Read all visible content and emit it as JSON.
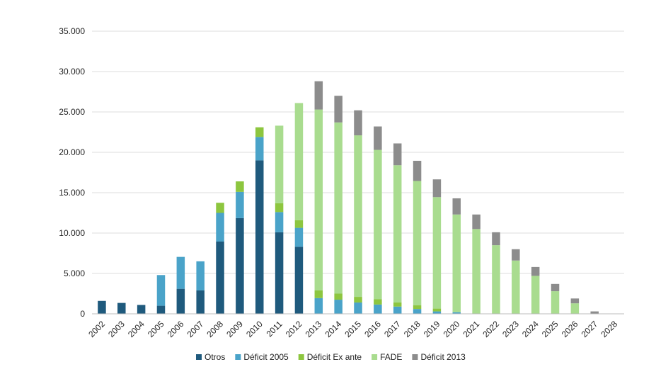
{
  "chart_data": {
    "type": "bar",
    "stacked": true,
    "title": "",
    "xlabel": "",
    "ylabel": "",
    "ylim": [
      0,
      35000
    ],
    "y_ticks": [
      "0",
      "5.000",
      "10.000",
      "15.000",
      "20.000",
      "25.000",
      "30.000",
      "35.000"
    ],
    "grid": true,
    "legend_position": "bottom",
    "categories": [
      "2002",
      "2003",
      "2004",
      "2005",
      "2006",
      "2007",
      "2008",
      "2009",
      "2010",
      "2011",
      "2012",
      "2013",
      "2014",
      "2015",
      "2016",
      "2017",
      "2018",
      "2019",
      "2020",
      "2021",
      "2022",
      "2023",
      "2024",
      "2025",
      "2026",
      "2027",
      "2028"
    ],
    "series": [
      {
        "name": "Otros",
        "color": "#1f5a7d",
        "values": [
          1600,
          1350,
          1100,
          1000,
          3100,
          2900,
          8950,
          11850,
          19000,
          10100,
          8300,
          0,
          0,
          0,
          0,
          0,
          0,
          0,
          0,
          0,
          0,
          0,
          0,
          0,
          0,
          0,
          0
        ]
      },
      {
        "name": "Déficit 2005",
        "color": "#4aa3c9",
        "values": [
          0,
          0,
          0,
          3800,
          3950,
          3600,
          3550,
          3250,
          2900,
          2500,
          2350,
          1950,
          1750,
          1400,
          1150,
          900,
          600,
          300,
          200,
          0,
          0,
          0,
          0,
          0,
          0,
          0,
          0
        ]
      },
      {
        "name": "Déficit Ex ante",
        "color": "#8dc63f",
        "values": [
          0,
          0,
          0,
          0,
          0,
          0,
          1250,
          1300,
          1200,
          1100,
          950,
          950,
          750,
          700,
          650,
          500,
          450,
          350,
          0,
          0,
          0,
          0,
          0,
          0,
          0,
          0,
          0
        ]
      },
      {
        "name": "FADE",
        "color": "#a9dc8f",
        "values": [
          0,
          0,
          0,
          0,
          0,
          0,
          0,
          0,
          0,
          9600,
          14500,
          22400,
          21200,
          20000,
          18500,
          17000,
          15400,
          13800,
          12100,
          10500,
          8500,
          6600,
          4700,
          2800,
          1300,
          0,
          0
        ]
      },
      {
        "name": "Déficit 2013",
        "color": "#8c8c8c",
        "values": [
          0,
          0,
          0,
          0,
          0,
          0,
          0,
          0,
          0,
          0,
          0,
          3500,
          3300,
          3100,
          2900,
          2700,
          2500,
          2200,
          2000,
          1800,
          1600,
          1400,
          1100,
          900,
          600,
          300,
          0
        ]
      }
    ]
  }
}
